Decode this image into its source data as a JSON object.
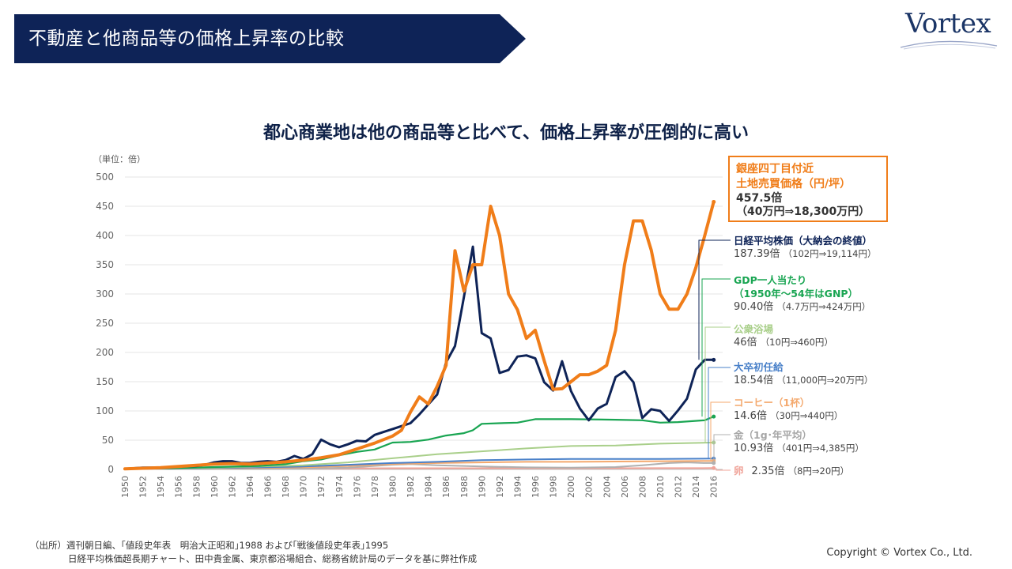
{
  "header": {
    "title": "不動産と他商品等の価格上昇率の比較",
    "logo_text": "Vortex"
  },
  "headline": "都心商業地は他の商品等と比べて、価格上昇率が圧倒的に高い",
  "colors": {
    "banner": "#0e2357",
    "ginza": "#f07d19",
    "nikkei": "#0e2357",
    "gdp": "#19a552",
    "bath": "#a9cf8a",
    "salary": "#4a81c9",
    "coffee": "#f4a96e",
    "gold": "#b0b0b0",
    "egg": "#f0a49a"
  },
  "callouts": {
    "ginza": {
      "title1": "銀座四丁目付近",
      "title2": "土地売買価格（円/坪）",
      "value": "457.5倍",
      "detail": "（40万円⇒18,300万円）"
    },
    "nikkei": {
      "title": "日経平均株価（大納会の終値）",
      "value": "187.39倍",
      "detail": "（102円⇒19,114円）"
    },
    "gdp": {
      "title1": "GDP一人当たり",
      "title2": "（1950年～54年はGNP）",
      "value": "90.40倍",
      "detail": "（4.7万円⇒424万円）"
    },
    "bath": {
      "title": "公衆浴場",
      "value": "46倍",
      "detail": "（10円⇒460円）"
    },
    "salary": {
      "title": "大卒初任給",
      "value": "18.54倍",
      "detail": "（11,000円⇒20万円）"
    },
    "coffee": {
      "title": "コーヒー（1杯）",
      "value": "14.6倍",
      "detail": "（30円⇒440円）"
    },
    "gold": {
      "title": "金（1g･年平均）",
      "value": "10.93倍",
      "detail": "（401円⇒4,385円）"
    },
    "egg": {
      "title": "卵",
      "value": "2.35倍",
      "detail": "（8円⇒20円）"
    }
  },
  "source": {
    "line1": "（出所）週刊朝日編、｢値段史年表　明治大正昭和｣1988 および｢戦後値段史年表｣1995",
    "line2": "日経平均株価超長期チャート、田中貴金属、東京都浴場組合、総務省統計局のデータを基に弊社作成"
  },
  "copyright": "Copyright © Vortex Co., Ltd.",
  "chart_data": {
    "type": "line",
    "unit_label": "（単位：倍）",
    "ylim": [
      0,
      500
    ],
    "yticks": [
      0,
      50,
      100,
      150,
      200,
      250,
      300,
      350,
      400,
      450,
      500
    ],
    "xlim": [
      1950,
      2017
    ],
    "xtick_labels": [
      "1950",
      "1952",
      "1954",
      "1956",
      "1958",
      "1960",
      "1962",
      "1964",
      "1966",
      "1968",
      "1970",
      "1972",
      "1974",
      "1976",
      "1978",
      "1980",
      "1982",
      "1984",
      "1986",
      "1988",
      "1990",
      "1992",
      "1994",
      "1996",
      "1998",
      "2000",
      "2002",
      "2004",
      "2006",
      "2008",
      "2010",
      "2012",
      "2014",
      "2016"
    ],
    "grid": true,
    "series": [
      {
        "name": "銀座四丁目付近 土地売買価格（円/坪）",
        "color": "#f07d19",
        "width": 4,
        "points": [
          [
            1950,
            1
          ],
          [
            1952,
            2
          ],
          [
            1954,
            3
          ],
          [
            1956,
            5
          ],
          [
            1958,
            7
          ],
          [
            1960,
            9
          ],
          [
            1962,
            10
          ],
          [
            1964,
            9
          ],
          [
            1966,
            11
          ],
          [
            1968,
            13
          ],
          [
            1970,
            16
          ],
          [
            1972,
            20
          ],
          [
            1974,
            25
          ],
          [
            1976,
            35
          ],
          [
            1978,
            45
          ],
          [
            1980,
            57
          ],
          [
            1981,
            67
          ],
          [
            1982,
            98
          ],
          [
            1983,
            124
          ],
          [
            1984,
            112
          ],
          [
            1985,
            142
          ],
          [
            1986,
            178
          ],
          [
            1987,
            374
          ],
          [
            1988,
            305
          ],
          [
            1989,
            350
          ],
          [
            1990,
            350
          ],
          [
            1991,
            450
          ],
          [
            1992,
            400
          ],
          [
            1993,
            300
          ],
          [
            1994,
            273
          ],
          [
            1995,
            224
          ],
          [
            1996,
            238
          ],
          [
            1997,
            186
          ],
          [
            1998,
            137
          ],
          [
            1999,
            138
          ],
          [
            2000,
            150
          ],
          [
            2001,
            162
          ],
          [
            2002,
            162
          ],
          [
            2003,
            168
          ],
          [
            2004,
            178
          ],
          [
            2005,
            238
          ],
          [
            2006,
            350
          ],
          [
            2007,
            425
          ],
          [
            2008,
            425
          ],
          [
            2009,
            375
          ],
          [
            2010,
            300
          ],
          [
            2011,
            274
          ],
          [
            2012,
            274
          ],
          [
            2013,
            300
          ],
          [
            2014,
            345
          ],
          [
            2015,
            400
          ],
          [
            2016,
            457.5
          ]
        ]
      },
      {
        "name": "日経平均株価（大納会の終値）",
        "color": "#0e2357",
        "width": 3,
        "points": [
          [
            1950,
            1
          ],
          [
            1952,
            3
          ],
          [
            1954,
            3
          ],
          [
            1956,
            5
          ],
          [
            1958,
            6
          ],
          [
            1959,
            8
          ],
          [
            1960,
            12
          ],
          [
            1961,
            14
          ],
          [
            1962,
            14
          ],
          [
            1963,
            11
          ],
          [
            1964,
            11
          ],
          [
            1965,
            13
          ],
          [
            1966,
            14
          ],
          [
            1967,
            13
          ],
          [
            1968,
            16
          ],
          [
            1969,
            23
          ],
          [
            1970,
            18
          ],
          [
            1971,
            26
          ],
          [
            1972,
            51
          ],
          [
            1973,
            43
          ],
          [
            1974,
            38
          ],
          [
            1975,
            43
          ],
          [
            1976,
            49
          ],
          [
            1977,
            48
          ],
          [
            1978,
            59
          ],
          [
            1979,
            64
          ],
          [
            1980,
            69
          ],
          [
            1981,
            74
          ],
          [
            1982,
            79
          ],
          [
            1983,
            94
          ],
          [
            1984,
            111
          ],
          [
            1985,
            128
          ],
          [
            1986,
            183
          ],
          [
            1987,
            211
          ],
          [
            1988,
            295
          ],
          [
            1989,
            381
          ],
          [
            1990,
            233
          ],
          [
            1991,
            224
          ],
          [
            1992,
            165
          ],
          [
            1993,
            170
          ],
          [
            1994,
            193
          ],
          [
            1995,
            195
          ],
          [
            1996,
            190
          ],
          [
            1997,
            149
          ],
          [
            1998,
            135
          ],
          [
            1999,
            185
          ],
          [
            2000,
            134
          ],
          [
            2001,
            104
          ],
          [
            2002,
            84
          ],
          [
            2003,
            104
          ],
          [
            2004,
            112
          ],
          [
            2005,
            158
          ],
          [
            2006,
            168
          ],
          [
            2007,
            149
          ],
          [
            2008,
            88
          ],
          [
            2009,
            103
          ],
          [
            2010,
            100
          ],
          [
            2011,
            83
          ],
          [
            2012,
            101
          ],
          [
            2013,
            121
          ],
          [
            2014,
            171
          ],
          [
            2015,
            187.39
          ],
          [
            2016,
            187.39
          ]
        ]
      },
      {
        "name": "GDP一人当たり（1950年～54年はGNP）",
        "color": "#19a552",
        "width": 2.2,
        "points": [
          [
            1950,
            1
          ],
          [
            1955,
            2
          ],
          [
            1960,
            4
          ],
          [
            1965,
            6
          ],
          [
            1968,
            9
          ],
          [
            1970,
            14
          ],
          [
            1972,
            17
          ],
          [
            1974,
            24
          ],
          [
            1976,
            30
          ],
          [
            1978,
            34
          ],
          [
            1980,
            46
          ],
          [
            1982,
            47
          ],
          [
            1984,
            51
          ],
          [
            1986,
            58
          ],
          [
            1988,
            62
          ],
          [
            1989,
            67
          ],
          [
            1990,
            78
          ],
          [
            1992,
            79
          ],
          [
            1994,
            80
          ],
          [
            1996,
            86
          ],
          [
            2000,
            86
          ],
          [
            2005,
            85
          ],
          [
            2008,
            84
          ],
          [
            2010,
            80
          ],
          [
            2012,
            81
          ],
          [
            2015,
            84
          ],
          [
            2016,
            90.4
          ]
        ]
      },
      {
        "name": "公衆浴場",
        "color": "#a9cf8a",
        "width": 2,
        "points": [
          [
            1950,
            1
          ],
          [
            1955,
            2
          ],
          [
            1960,
            3
          ],
          [
            1965,
            5
          ],
          [
            1970,
            7
          ],
          [
            1975,
            12
          ],
          [
            1980,
            19
          ],
          [
            1985,
            26
          ],
          [
            1990,
            31
          ],
          [
            1995,
            36
          ],
          [
            2000,
            40
          ],
          [
            2005,
            41
          ],
          [
            2010,
            44
          ],
          [
            2016,
            46
          ]
        ]
      },
      {
        "name": "大卒初任給",
        "color": "#4a81c9",
        "width": 2,
        "points": [
          [
            1950,
            1
          ],
          [
            1955,
            1.5
          ],
          [
            1960,
            2.5
          ],
          [
            1965,
            3.5
          ],
          [
            1970,
            5
          ],
          [
            1975,
            8
          ],
          [
            1980,
            11
          ],
          [
            1985,
            13
          ],
          [
            1990,
            16
          ],
          [
            1995,
            17
          ],
          [
            2000,
            18
          ],
          [
            2005,
            18
          ],
          [
            2010,
            18
          ],
          [
            2016,
            18.54
          ]
        ]
      },
      {
        "name": "コーヒー（1杯）",
        "color": "#f4a96e",
        "width": 2,
        "points": [
          [
            1950,
            1
          ],
          [
            1955,
            1.5
          ],
          [
            1960,
            2
          ],
          [
            1965,
            2.5
          ],
          [
            1970,
            3.5
          ],
          [
            1975,
            6
          ],
          [
            1980,
            9
          ],
          [
            1985,
            11
          ],
          [
            1990,
            12
          ],
          [
            1995,
            13
          ],
          [
            2000,
            13
          ],
          [
            2005,
            13.5
          ],
          [
            2010,
            14
          ],
          [
            2016,
            14.6
          ]
        ]
      },
      {
        "name": "金（1g･年平均）",
        "color": "#b0b0b0",
        "width": 2,
        "points": [
          [
            1950,
            1
          ],
          [
            1955,
            1
          ],
          [
            1960,
            1
          ],
          [
            1965,
            1
          ],
          [
            1970,
            1.5
          ],
          [
            1975,
            3
          ],
          [
            1980,
            8
          ],
          [
            1982,
            9
          ],
          [
            1985,
            7
          ],
          [
            1990,
            5
          ],
          [
            1995,
            3.5
          ],
          [
            2000,
            3
          ],
          [
            2005,
            4
          ],
          [
            2008,
            7
          ],
          [
            2011,
            11
          ],
          [
            2013,
            12
          ],
          [
            2015,
            11
          ],
          [
            2016,
            10.93
          ]
        ]
      },
      {
        "name": "卵",
        "color": "#f0a49a",
        "width": 2,
        "points": [
          [
            1950,
            1
          ],
          [
            1960,
            1.2
          ],
          [
            1970,
            1.5
          ],
          [
            1980,
            2
          ],
          [
            1990,
            2
          ],
          [
            2000,
            2
          ],
          [
            2010,
            2.2
          ],
          [
            2016,
            2.35
          ]
        ]
      }
    ]
  }
}
